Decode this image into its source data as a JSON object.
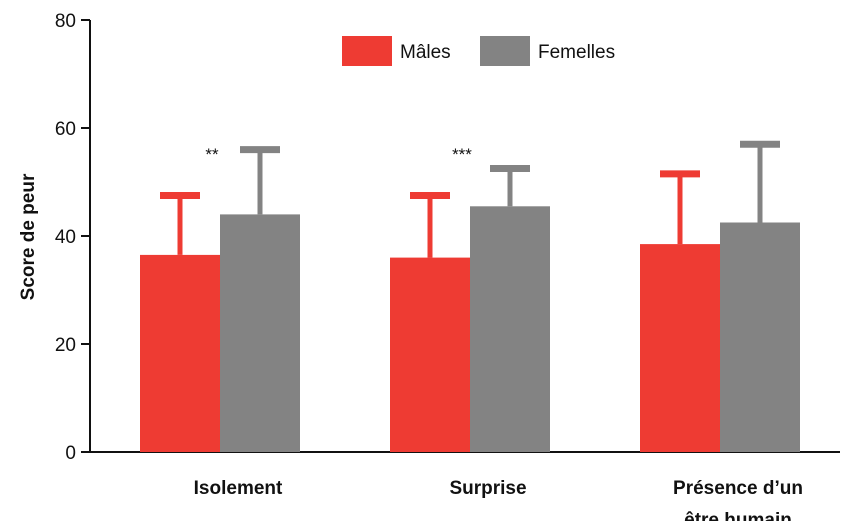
{
  "chart_data": {
    "type": "bar",
    "title": "",
    "xlabel": "",
    "ylabel": "Score de peur",
    "ylim": [
      0,
      80
    ],
    "yticks": [
      0,
      20,
      40,
      60,
      80
    ],
    "categories": [
      [
        "Isolement"
      ],
      [
        "Surprise"
      ],
      [
        "Présence d’un",
        "être humain"
      ]
    ],
    "series": [
      {
        "name": "Mâles",
        "color": "#ee3b33",
        "values": [
          36.5,
          36.0,
          38.5
        ],
        "errors": [
          11.0,
          11.5,
          13.0
        ]
      },
      {
        "name": "Femelles",
        "color": "#838383",
        "values": [
          44.0,
          45.5,
          42.5
        ],
        "errors": [
          12.0,
          7.0,
          14.5
        ]
      }
    ],
    "annotations": [
      "**",
      "***",
      ""
    ],
    "legend_position": "top-center",
    "grid": false
  }
}
